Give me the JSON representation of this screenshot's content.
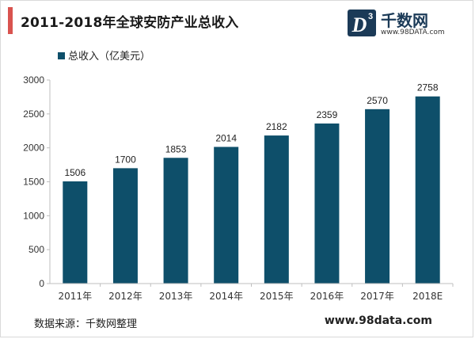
{
  "header": {
    "title": "2011-2018年全球安防产业总收入",
    "accent_color": "#d9534f"
  },
  "logo": {
    "name": "千数网",
    "url": "www.98DATA.com",
    "mark_letter": "D",
    "mark_superscript": "3",
    "brand_color": "#1b3a57"
  },
  "footer": {
    "source": "数据来源：千数网整理",
    "website": "www.98data.com"
  },
  "chart_data": {
    "type": "bar",
    "categories": [
      "2011年",
      "2012年",
      "2013年",
      "2014年",
      "2015年",
      "2016年",
      "2017年",
      "2018E"
    ],
    "series": [
      {
        "name": "总收入（亿美元）",
        "values": [
          1506,
          1700,
          1853,
          2014,
          2182,
          2359,
          2570,
          2758
        ],
        "color": "#0e4f6a"
      }
    ],
    "ylim": [
      0,
      3000
    ],
    "yticks": [
      0,
      500,
      1000,
      1500,
      2000,
      2500,
      3000
    ],
    "data_labels": true,
    "grid": false,
    "legend_position": "top-left"
  }
}
